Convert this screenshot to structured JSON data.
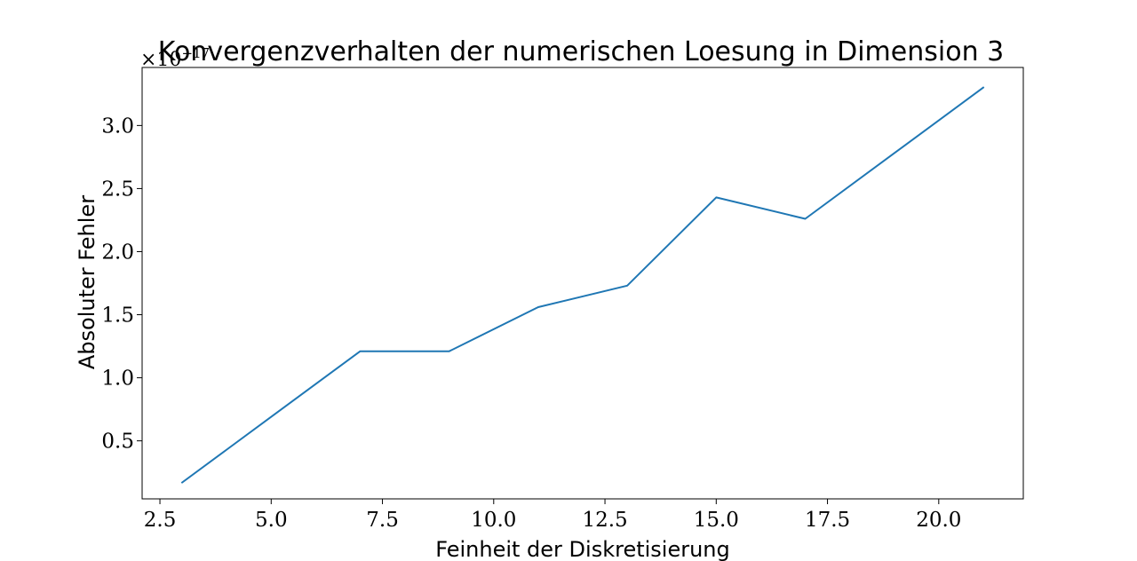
{
  "chart_data": {
    "type": "line",
    "title": "Konvergenzverhalten der numerischen Loesung in Dimension 3",
    "xlabel": "Feinheit der Diskretisierung",
    "ylabel": "Absoluter Fehler",
    "y_offset_label": {
      "base": "×10",
      "exponent": "−17"
    },
    "xlim": [
      2.1,
      21.9
    ],
    "ylim": [
      0.04,
      3.46
    ],
    "y_scale_factor": "1e-17",
    "x_ticks": [
      2.5,
      5.0,
      7.5,
      10.0,
      12.5,
      15.0,
      17.5,
      20.0
    ],
    "x_tick_labels": [
      "2.5",
      "5.0",
      "7.5",
      "10.0",
      "12.5",
      "15.0",
      "17.5",
      "20.0"
    ],
    "y_ticks": [
      0.5,
      1.0,
      1.5,
      2.0,
      2.5,
      3.0
    ],
    "y_tick_labels": [
      "0.5",
      "1.0",
      "1.5",
      "2.0",
      "2.5",
      "3.0"
    ],
    "grid": false,
    "series": [
      {
        "color": "#1f77b4",
        "x": [
          3,
          5,
          7,
          9,
          11,
          13,
          15,
          17,
          19,
          21
        ],
        "y": [
          0.17,
          0.69,
          1.21,
          1.21,
          1.56,
          1.73,
          2.43,
          2.26,
          2.78,
          3.3
        ]
      }
    ]
  }
}
